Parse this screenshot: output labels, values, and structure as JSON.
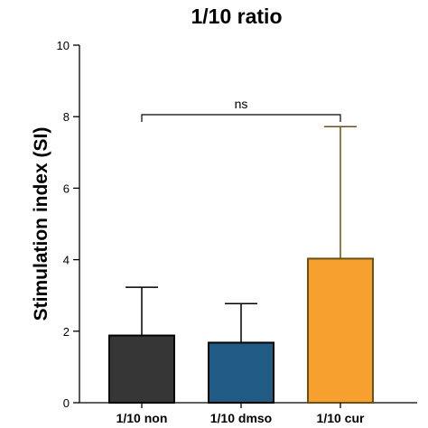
{
  "chart_data": {
    "type": "bar",
    "title": "1/10 ratio",
    "xlabel": "",
    "ylabel": "Stimulation index (SI)",
    "ylim": [
      0,
      10
    ],
    "yticks": [
      "0",
      "2",
      "4",
      "6",
      "8",
      "10"
    ],
    "categories": [
      "1/10 non",
      "1/10 dmso",
      "1/10 cur"
    ],
    "values": [
      1.88,
      1.68,
      4.03
    ],
    "error_upper": [
      3.23,
      2.77,
      7.72
    ],
    "colors": [
      "#363636",
      "#1f5b85",
      "#f6a02f"
    ],
    "edge_colors": [
      "#000000",
      "#000000",
      "#6b4f15"
    ],
    "significance": {
      "label": "ns",
      "from_category": "1/10 non",
      "to_category": "1/10 cur"
    },
    "grid": false,
    "legend": "none"
  }
}
